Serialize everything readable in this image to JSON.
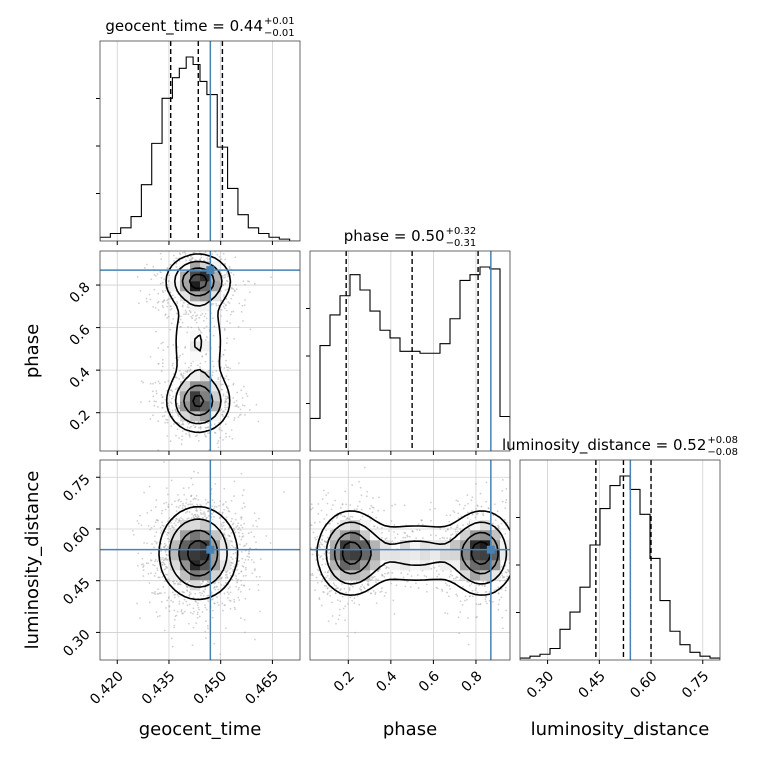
{
  "chart_data": {
    "type": "corner",
    "parameters": [
      "geocent_time",
      "phase",
      "luminosity_distance"
    ],
    "truths": {
      "geocent_time": 0.447,
      "phase": 0.87,
      "luminosity_distance": 0.54
    },
    "truth_color": "#4682b4",
    "grid": true,
    "ranges": {
      "geocent_time": [
        0.415,
        0.473
      ],
      "phase": [
        0.02,
        0.96
      ],
      "luminosity_distance": [
        0.22,
        0.8
      ]
    },
    "ticks": {
      "geocent_time": {
        "values": [
          0.42,
          0.435,
          0.45,
          0.465
        ],
        "labels": [
          "0.420",
          "0.435",
          "0.450",
          "0.465"
        ]
      },
      "phase": {
        "values": [
          0.2,
          0.4,
          0.6,
          0.8
        ],
        "labels": [
          "0.2",
          "0.4",
          "0.6",
          "0.8"
        ]
      },
      "luminosity_distance": {
        "values": [
          0.3,
          0.45,
          0.6,
          0.75
        ],
        "labels": [
          "0.30",
          "0.45",
          "0.60",
          "0.75"
        ]
      }
    },
    "titles": [
      {
        "name": "geocent_time = 0.44",
        "sup": "+0.01",
        "sub": "−0.01"
      },
      {
        "name": "phase = 0.50",
        "sup": "+0.32",
        "sub": "−0.31"
      },
      {
        "name": "luminosity_distance = 0.52",
        "sup": "+0.08",
        "sub": "−0.08"
      }
    ],
    "axis_labels": [
      "geocent_time",
      "phase",
      "luminosity_distance"
    ],
    "histograms": [
      {
        "param": "geocent_time",
        "quantiles": [
          0.4355,
          0.4435,
          0.4505
        ],
        "bins": [
          0.415,
          0.418,
          0.421,
          0.424,
          0.427,
          0.43,
          0.433,
          0.436,
          0.438,
          0.44,
          0.442,
          0.444,
          0.446,
          0.449,
          0.452,
          0.455,
          0.458,
          0.461,
          0.464,
          0.467,
          0.47,
          0.473
        ],
        "counts": [
          0.02,
          0.04,
          0.07,
          0.13,
          0.3,
          0.52,
          0.76,
          0.87,
          0.92,
          0.98,
          0.94,
          0.85,
          0.78,
          0.5,
          0.28,
          0.14,
          0.07,
          0.04,
          0.02,
          0.01,
          0
        ]
      },
      {
        "param": "phase",
        "quantiles": [
          0.19,
          0.5,
          0.81
        ],
        "bins": [
          0.02,
          0.067,
          0.114,
          0.161,
          0.208,
          0.255,
          0.302,
          0.349,
          0.396,
          0.443,
          0.49,
          0.537,
          0.584,
          0.631,
          0.678,
          0.725,
          0.772,
          0.819,
          0.866,
          0.913,
          0.96
        ],
        "counts": [
          0.17,
          0.55,
          0.71,
          0.81,
          0.92,
          0.84,
          0.73,
          0.63,
          0.59,
          0.52,
          0.52,
          0.51,
          0.51,
          0.56,
          0.69,
          0.89,
          0.92,
          0.96,
          0.95,
          0.18
        ]
      },
      {
        "param": "luminosity_distance",
        "quantiles": [
          0.44,
          0.52,
          0.6
        ],
        "bins": [
          0.22,
          0.249,
          0.278,
          0.307,
          0.336,
          0.365,
          0.394,
          0.423,
          0.452,
          0.481,
          0.51,
          0.539,
          0.568,
          0.597,
          0.626,
          0.655,
          0.684,
          0.713,
          0.742,
          0.771,
          0.8
        ],
        "counts": [
          0.01,
          0.02,
          0.03,
          0.06,
          0.16,
          0.25,
          0.38,
          0.6,
          0.79,
          0.91,
          0.96,
          0.89,
          0.76,
          0.53,
          0.31,
          0.15,
          0.08,
          0.04,
          0.02,
          0.01
        ]
      }
    ],
    "contour_panels": [
      {
        "x": "geocent_time",
        "y": "phase",
        "blobs": [
          {
            "cx": 0.4435,
            "cy": 0.82,
            "sx": 0.0045,
            "sy": 0.06,
            "w": 1.0
          },
          {
            "cx": 0.4435,
            "cy": 0.25,
            "sx": 0.0045,
            "sy": 0.07,
            "w": 0.9
          },
          {
            "cx": 0.4435,
            "cy": 0.53,
            "sx": 0.0045,
            "sy": 0.16,
            "w": 0.35
          }
        ]
      },
      {
        "x": "geocent_time",
        "y": "luminosity_distance",
        "blobs": [
          {
            "cx": 0.4435,
            "cy": 0.53,
            "sx": 0.0055,
            "sy": 0.065,
            "w": 1.0
          }
        ]
      },
      {
        "x": "phase",
        "y": "luminosity_distance",
        "blobs": [
          {
            "cx": 0.21,
            "cy": 0.53,
            "sx": 0.075,
            "sy": 0.06,
            "w": 1.0
          },
          {
            "cx": 0.83,
            "cy": 0.53,
            "sx": 0.075,
            "sy": 0.06,
            "w": 1.0
          },
          {
            "cx": 0.52,
            "cy": 0.53,
            "sx": 0.18,
            "sy": 0.05,
            "w": 0.45
          }
        ]
      }
    ]
  }
}
